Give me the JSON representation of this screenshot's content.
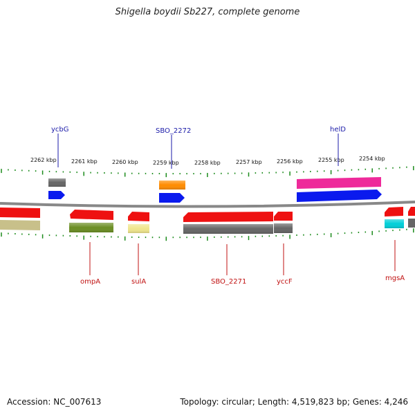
{
  "title": "Shigella boydii Sb227, complete genome",
  "footer": {
    "accession": "Accession: NC_007613",
    "summary": "Topology: circular; Length: 4,519,823 bp; Genes: 4,246"
  },
  "ticks": [
    "2262 kbp",
    "2261 kbp",
    "2260 kbp",
    "2259 kbp",
    "2258 kbp",
    "2257 kbp",
    "2256 kbp",
    "2255 kbp",
    "2254 kbp"
  ],
  "genes_top": [
    "ycbG",
    "SBO_2272",
    "helD"
  ],
  "genes_bottom": [
    "ompA",
    "sulA",
    "SBO_2271",
    "yccF",
    "mgsA"
  ],
  "colors": {
    "red": "#ee1111",
    "blue": "#0a1aee",
    "gray": "#666666",
    "orange": "#ff8c00",
    "magenta": "#ee2a9a",
    "olive": "#6b8e23",
    "khaki": "#c8c08a",
    "yellow": "#f0e68c",
    "cyan": "#00cfd8",
    "tick": "#1a8a1a",
    "backbone": "#888888"
  }
}
